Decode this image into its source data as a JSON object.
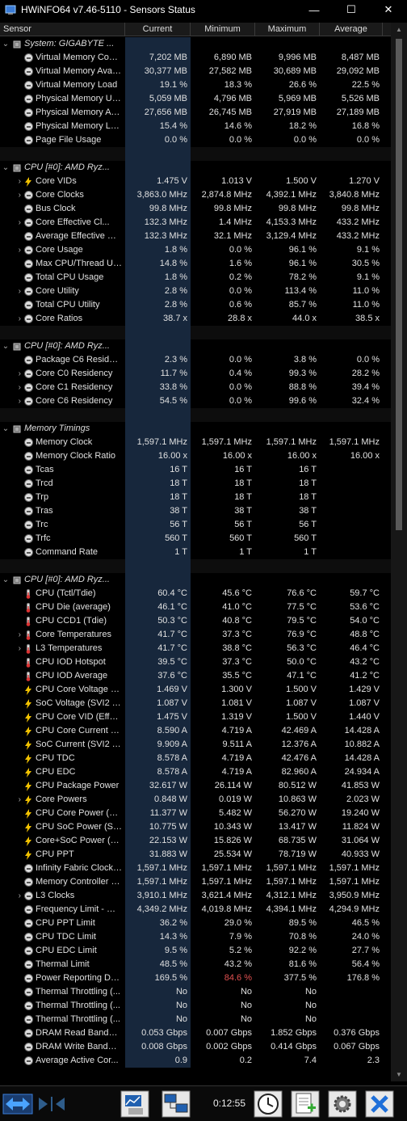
{
  "window": {
    "title": "HWiNFO64 v7.46-5110 - Sensors Status",
    "minimize_glyph": "—",
    "maximize_glyph": "☐",
    "close_glyph": "✕"
  },
  "columns": [
    "Sensor",
    "Current",
    "Minimum",
    "Maximum",
    "Average"
  ],
  "rows": [
    {
      "type": "group",
      "name": "System: GIGABYTE ...",
      "icon": "chip-icon",
      "expand": "v"
    },
    {
      "type": "item",
      "name": "Virtual Memory Com...",
      "icon": "circle-icon",
      "vals": [
        "7,202 MB",
        "6,890 MB",
        "9,996 MB",
        "8,487 MB"
      ]
    },
    {
      "type": "item",
      "name": "Virtual Memory Avail...",
      "icon": "circle-icon",
      "vals": [
        "30,377 MB",
        "27,582 MB",
        "30,689 MB",
        "29,092 MB"
      ]
    },
    {
      "type": "item",
      "name": "Virtual Memory Load",
      "icon": "circle-icon",
      "vals": [
        "19.1 %",
        "18.3 %",
        "26.6 %",
        "22.5 %"
      ]
    },
    {
      "type": "item",
      "name": "Physical Memory Used",
      "icon": "circle-icon",
      "vals": [
        "5,059 MB",
        "4,796 MB",
        "5,969 MB",
        "5,526 MB"
      ]
    },
    {
      "type": "item",
      "name": "Physical Memory Av...",
      "icon": "circle-icon",
      "vals": [
        "27,656 MB",
        "26,745 MB",
        "27,919 MB",
        "27,189 MB"
      ]
    },
    {
      "type": "item",
      "name": "Physical Memory Load",
      "icon": "circle-icon",
      "vals": [
        "15.4 %",
        "14.6 %",
        "18.2 %",
        "16.8 %"
      ]
    },
    {
      "type": "item",
      "name": "Page File Usage",
      "icon": "circle-icon",
      "vals": [
        "0.0 %",
        "0.0 %",
        "0.0 %",
        "0.0 %"
      ]
    },
    {
      "type": "sep"
    },
    {
      "type": "group",
      "name": "CPU [#0]: AMD Ryz...",
      "icon": "chip-icon",
      "expand": "v"
    },
    {
      "type": "item",
      "name": "Core VIDs",
      "icon": "bolt-icon",
      "expand": ">",
      "vals": [
        "1.475 V",
        "1.013 V",
        "1.500 V",
        "1.270 V"
      ]
    },
    {
      "type": "item",
      "name": "Core Clocks",
      "icon": "circle-icon",
      "expand": ">",
      "vals": [
        "3,863.0 MHz",
        "2,874.8 MHz",
        "4,392.1 MHz",
        "3,840.8 MHz"
      ]
    },
    {
      "type": "item",
      "name": "Bus Clock",
      "icon": "circle-icon",
      "vals": [
        "99.8 MHz",
        "99.8 MHz",
        "99.8 MHz",
        "99.8 MHz"
      ]
    },
    {
      "type": "item",
      "name": "Core Effective Cl...",
      "icon": "circle-icon",
      "expand": ">",
      "vals": [
        "132.3 MHz",
        "1.4 MHz",
        "4,153.3 MHz",
        "433.2 MHz"
      ]
    },
    {
      "type": "item",
      "name": "Average Effective Cl...",
      "icon": "circle-icon",
      "vals": [
        "132.3 MHz",
        "32.1 MHz",
        "3,129.4 MHz",
        "433.2 MHz"
      ]
    },
    {
      "type": "item",
      "name": "Core Usage",
      "icon": "circle-icon",
      "expand": ">",
      "vals": [
        "1.8 %",
        "0.0 %",
        "96.1 %",
        "9.1 %"
      ]
    },
    {
      "type": "item",
      "name": "Max CPU/Thread Us...",
      "icon": "circle-icon",
      "vals": [
        "14.8 %",
        "1.6 %",
        "96.1 %",
        "30.5 %"
      ]
    },
    {
      "type": "item",
      "name": "Total CPU Usage",
      "icon": "circle-icon",
      "vals": [
        "1.8 %",
        "0.2 %",
        "78.2 %",
        "9.1 %"
      ]
    },
    {
      "type": "item",
      "name": "Core Utility",
      "icon": "circle-icon",
      "expand": ">",
      "vals": [
        "2.8 %",
        "0.0 %",
        "113.4 %",
        "11.0 %"
      ]
    },
    {
      "type": "item",
      "name": "Total CPU Utility",
      "icon": "circle-icon",
      "vals": [
        "2.8 %",
        "0.6 %",
        "85.7 %",
        "11.0 %"
      ]
    },
    {
      "type": "item",
      "name": "Core Ratios",
      "icon": "circle-icon",
      "expand": ">",
      "vals": [
        "38.7 x",
        "28.8 x",
        "44.0 x",
        "38.5 x"
      ]
    },
    {
      "type": "sep"
    },
    {
      "type": "group",
      "name": "CPU [#0]: AMD Ryz...",
      "icon": "chip-icon",
      "expand": "v"
    },
    {
      "type": "item",
      "name": "Package C6 Residency",
      "icon": "circle-icon",
      "vals": [
        "2.3 %",
        "0.0 %",
        "3.8 %",
        "0.0 %"
      ]
    },
    {
      "type": "item",
      "name": "Core C0 Residency",
      "icon": "circle-icon",
      "expand": ">",
      "vals": [
        "11.7 %",
        "0.4 %",
        "99.3 %",
        "28.2 %"
      ]
    },
    {
      "type": "item",
      "name": "Core C1 Residency",
      "icon": "circle-icon",
      "expand": ">",
      "vals": [
        "33.8 %",
        "0.0 %",
        "88.8 %",
        "39.4 %"
      ]
    },
    {
      "type": "item",
      "name": "Core C6 Residency",
      "icon": "circle-icon",
      "expand": ">",
      "vals": [
        "54.5 %",
        "0.0 %",
        "99.6 %",
        "32.4 %"
      ]
    },
    {
      "type": "sep"
    },
    {
      "type": "group",
      "name": "Memory Timings",
      "icon": "chip-icon",
      "expand": "v"
    },
    {
      "type": "item",
      "name": "Memory Clock",
      "icon": "circle-icon",
      "vals": [
        "1,597.1 MHz",
        "1,597.1 MHz",
        "1,597.1 MHz",
        "1,597.1 MHz"
      ]
    },
    {
      "type": "item",
      "name": "Memory Clock Ratio",
      "icon": "circle-icon",
      "vals": [
        "16.00 x",
        "16.00 x",
        "16.00 x",
        "16.00 x"
      ]
    },
    {
      "type": "item",
      "name": "Tcas",
      "icon": "circle-icon",
      "vals": [
        "16 T",
        "16 T",
        "16 T",
        ""
      ]
    },
    {
      "type": "item",
      "name": "Trcd",
      "icon": "circle-icon",
      "vals": [
        "18 T",
        "18 T",
        "18 T",
        ""
      ]
    },
    {
      "type": "item",
      "name": "Trp",
      "icon": "circle-icon",
      "vals": [
        "18 T",
        "18 T",
        "18 T",
        ""
      ]
    },
    {
      "type": "item",
      "name": "Tras",
      "icon": "circle-icon",
      "vals": [
        "38 T",
        "38 T",
        "38 T",
        ""
      ]
    },
    {
      "type": "item",
      "name": "Trc",
      "icon": "circle-icon",
      "vals": [
        "56 T",
        "56 T",
        "56 T",
        ""
      ]
    },
    {
      "type": "item",
      "name": "Trfc",
      "icon": "circle-icon",
      "vals": [
        "560 T",
        "560 T",
        "560 T",
        ""
      ]
    },
    {
      "type": "item",
      "name": "Command Rate",
      "icon": "circle-icon",
      "vals": [
        "1 T",
        "1 T",
        "1 T",
        ""
      ]
    },
    {
      "type": "sep"
    },
    {
      "type": "group",
      "name": "CPU [#0]: AMD Ryz...",
      "icon": "chip-icon",
      "expand": "v"
    },
    {
      "type": "item",
      "name": "CPU (Tctl/Tdie)",
      "icon": "thermometer-icon",
      "vals": [
        "60.4 °C",
        "45.6 °C",
        "76.6 °C",
        "59.7 °C"
      ]
    },
    {
      "type": "item",
      "name": "CPU Die (average)",
      "icon": "thermometer-icon",
      "vals": [
        "46.1 °C",
        "41.0 °C",
        "77.5 °C",
        "53.6 °C"
      ]
    },
    {
      "type": "item",
      "name": "CPU CCD1 (Tdie)",
      "icon": "thermometer-icon",
      "vals": [
        "50.3 °C",
        "40.8 °C",
        "79.5 °C",
        "54.0 °C"
      ]
    },
    {
      "type": "item",
      "name": "Core Temperatures",
      "icon": "thermometer-icon",
      "expand": ">",
      "vals": [
        "41.7 °C",
        "37.3 °C",
        "76.9 °C",
        "48.8 °C"
      ]
    },
    {
      "type": "item",
      "name": "L3 Temperatures",
      "icon": "thermometer-icon",
      "expand": ">",
      "vals": [
        "41.7 °C",
        "38.8 °C",
        "56.3 °C",
        "46.4 °C"
      ]
    },
    {
      "type": "item",
      "name": "CPU IOD Hotspot",
      "icon": "thermometer-icon",
      "vals": [
        "39.5 °C",
        "37.3 °C",
        "50.0 °C",
        "43.2 °C"
      ]
    },
    {
      "type": "item",
      "name": "CPU IOD Average",
      "icon": "thermometer-icon",
      "vals": [
        "37.6 °C",
        "35.5 °C",
        "47.1 °C",
        "41.2 °C"
      ]
    },
    {
      "type": "item",
      "name": "CPU Core Voltage (S...",
      "icon": "bolt-icon",
      "vals": [
        "1.469 V",
        "1.300 V",
        "1.500 V",
        "1.429 V"
      ]
    },
    {
      "type": "item",
      "name": "SoC Voltage (SVI2 T...",
      "icon": "bolt-icon",
      "vals": [
        "1.087 V",
        "1.081 V",
        "1.087 V",
        "1.087 V"
      ]
    },
    {
      "type": "item",
      "name": "CPU Core VID (Effec...",
      "icon": "bolt-icon",
      "vals": [
        "1.475 V",
        "1.319 V",
        "1.500 V",
        "1.440 V"
      ]
    },
    {
      "type": "item",
      "name": "CPU Core Current (S...",
      "icon": "bolt-icon",
      "vals": [
        "8.590 A",
        "4.719 A",
        "42.469 A",
        "14.428 A"
      ]
    },
    {
      "type": "item",
      "name": "SoC Current (SVI2 T...",
      "icon": "bolt-icon",
      "vals": [
        "9.909 A",
        "9.511 A",
        "12.376 A",
        "10.882 A"
      ]
    },
    {
      "type": "item",
      "name": "CPU TDC",
      "icon": "bolt-icon",
      "vals": [
        "8.578 A",
        "4.719 A",
        "42.476 A",
        "14.428 A"
      ]
    },
    {
      "type": "item",
      "name": "CPU EDC",
      "icon": "bolt-icon",
      "vals": [
        "8.578 A",
        "4.719 A",
        "82.960 A",
        "24.934 A"
      ]
    },
    {
      "type": "item",
      "name": "CPU Package Power",
      "icon": "bolt-icon",
      "vals": [
        "32.617 W",
        "26.114 W",
        "80.512 W",
        "41.853 W"
      ]
    },
    {
      "type": "item",
      "name": "Core Powers",
      "icon": "bolt-icon",
      "expand": ">",
      "vals": [
        "0.848 W",
        "0.019 W",
        "10.863 W",
        "2.023 W"
      ]
    },
    {
      "type": "item",
      "name": "CPU Core Power (SV...",
      "icon": "bolt-icon",
      "vals": [
        "11.377 W",
        "5.482 W",
        "56.270 W",
        "19.240 W"
      ]
    },
    {
      "type": "item",
      "name": "CPU SoC Power (SVI...",
      "icon": "bolt-icon",
      "vals": [
        "10.775 W",
        "10.343 W",
        "13.417 W",
        "11.824 W"
      ]
    },
    {
      "type": "item",
      "name": "Core+SoC Power (S...",
      "icon": "bolt-icon",
      "vals": [
        "22.153 W",
        "15.826 W",
        "68.735 W",
        "31.064 W"
      ]
    },
    {
      "type": "item",
      "name": "CPU PPT",
      "icon": "bolt-icon",
      "vals": [
        "31.883 W",
        "25.534 W",
        "78.719 W",
        "40.933 W"
      ]
    },
    {
      "type": "item",
      "name": "Infinity Fabric Clock ...",
      "icon": "circle-icon",
      "vals": [
        "1,597.1 MHz",
        "1,597.1 MHz",
        "1,597.1 MHz",
        "1,597.1 MHz"
      ]
    },
    {
      "type": "item",
      "name": "Memory Controller C...",
      "icon": "circle-icon",
      "vals": [
        "1,597.1 MHz",
        "1,597.1 MHz",
        "1,597.1 MHz",
        "1,597.1 MHz"
      ]
    },
    {
      "type": "item",
      "name": "L3 Clocks",
      "icon": "circle-icon",
      "expand": ">",
      "vals": [
        "3,910.1 MHz",
        "3,621.4 MHz",
        "4,312.1 MHz",
        "3,950.9 MHz"
      ]
    },
    {
      "type": "item",
      "name": "Frequency Limit - Gl...",
      "icon": "circle-icon",
      "vals": [
        "4,349.2 MHz",
        "4,019.8 MHz",
        "4,394.1 MHz",
        "4,294.9 MHz"
      ]
    },
    {
      "type": "item",
      "name": "CPU PPT Limit",
      "icon": "circle-icon",
      "vals": [
        "36.2 %",
        "29.0 %",
        "89.5 %",
        "46.5 %"
      ]
    },
    {
      "type": "item",
      "name": "CPU TDC Limit",
      "icon": "circle-icon",
      "vals": [
        "14.3 %",
        "7.9 %",
        "70.8 %",
        "24.0 %"
      ]
    },
    {
      "type": "item",
      "name": "CPU EDC Limit",
      "icon": "circle-icon",
      "vals": [
        "9.5 %",
        "5.2 %",
        "92.2 %",
        "27.7 %"
      ]
    },
    {
      "type": "item",
      "name": "Thermal Limit",
      "icon": "circle-icon",
      "vals": [
        "48.5 %",
        "43.2 %",
        "81.6 %",
        "56.4 %"
      ]
    },
    {
      "type": "item",
      "name": "Power Reporting De...",
      "icon": "circle-icon",
      "vals": [
        "169.5 %",
        "84.6 %",
        "377.5 %",
        "176.8 %"
      ],
      "red_min": true
    },
    {
      "type": "item",
      "name": "Thermal Throttling (...",
      "icon": "circle-icon",
      "vals": [
        "No",
        "No",
        "No",
        ""
      ]
    },
    {
      "type": "item",
      "name": "Thermal Throttling (...",
      "icon": "circle-icon",
      "vals": [
        "No",
        "No",
        "No",
        ""
      ]
    },
    {
      "type": "item",
      "name": "Thermal Throttling (...",
      "icon": "circle-icon",
      "vals": [
        "No",
        "No",
        "No",
        ""
      ]
    },
    {
      "type": "item",
      "name": "DRAM Read Bandwidth",
      "icon": "circle-icon",
      "vals": [
        "0.053 Gbps",
        "0.007 Gbps",
        "1.852 Gbps",
        "0.376 Gbps"
      ]
    },
    {
      "type": "item",
      "name": "DRAM Write Bandwidth",
      "icon": "circle-icon",
      "vals": [
        "0.008 Gbps",
        "0.002 Gbps",
        "0.414 Gbps",
        "0.067 Gbps"
      ]
    },
    {
      "type": "item",
      "name": "Average Active Cor...",
      "icon": "circle-icon",
      "vals": [
        "0.9",
        "0.2",
        "7.4",
        "2.3"
      ]
    }
  ],
  "toolbar": {
    "elapsed_time": "0:12:55"
  },
  "colors": {
    "current_column_bg": "#17273c",
    "warning_value": "#e05050",
    "accent_blue": "#1e6fd9"
  }
}
